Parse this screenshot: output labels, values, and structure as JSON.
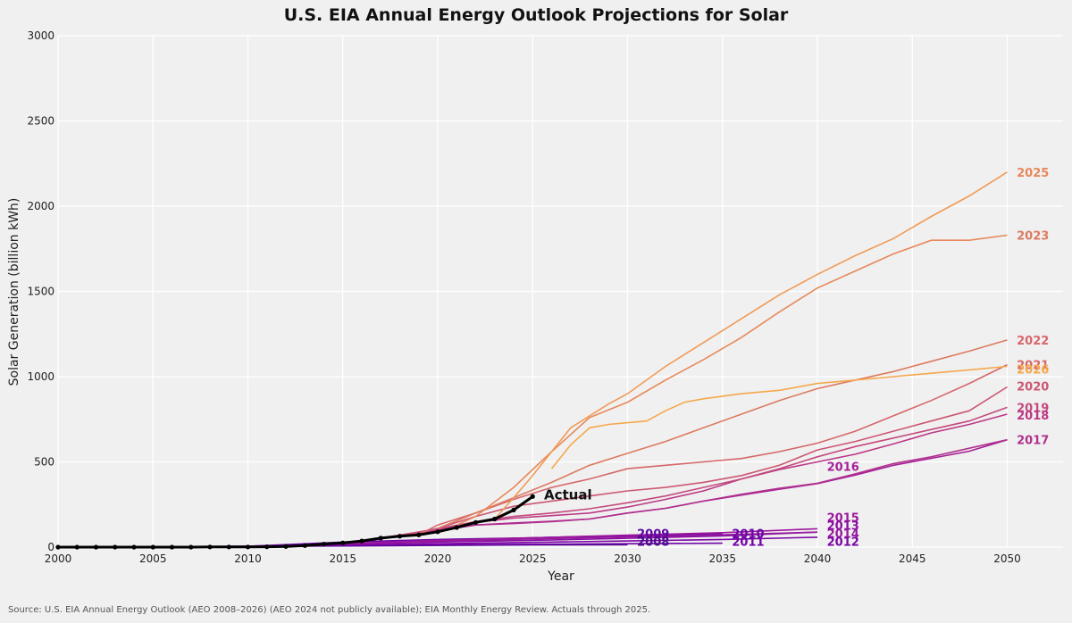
{
  "chart_data": {
    "type": "line",
    "title": "U.S. EIA Annual Energy Outlook Projections for Solar",
    "xlabel": "Year",
    "ylabel": "Solar Generation (billion kWh)",
    "xlim": [
      2000,
      2053
    ],
    "ylim": [
      0,
      3000
    ],
    "x_ticks": [
      2000,
      2005,
      2010,
      2015,
      2020,
      2025,
      2030,
      2035,
      2040,
      2045,
      2050
    ],
    "y_ticks": [
      0,
      500,
      1000,
      1500,
      2000,
      2500,
      3000
    ],
    "grid": true,
    "source": "Source: U.S. EIA Annual Energy Outlook (AEO 2008–2026) (AEO 2024 not publicly available); EIA Monthly Energy Review. Actuals through 2025.",
    "actual": {
      "name": "Actual",
      "color": "#000000",
      "points": [
        [
          2000,
          0
        ],
        [
          2001,
          0
        ],
        [
          2002,
          0
        ],
        [
          2003,
          0
        ],
        [
          2004,
          0
        ],
        [
          2005,
          0
        ],
        [
          2006,
          0
        ],
        [
          2007,
          0
        ],
        [
          2008,
          1
        ],
        [
          2009,
          1
        ],
        [
          2010,
          1
        ],
        [
          2011,
          2
        ],
        [
          2012,
          4
        ],
        [
          2013,
          9
        ],
        [
          2014,
          18
        ],
        [
          2015,
          25
        ],
        [
          2016,
          36
        ],
        [
          2017,
          53
        ],
        [
          2018,
          64
        ],
        [
          2019,
          72
        ],
        [
          2020,
          90
        ],
        [
          2021,
          115
        ],
        [
          2022,
          145
        ],
        [
          2023,
          165
        ],
        [
          2024,
          218
        ],
        [
          2025,
          297
        ]
      ]
    },
    "series": [
      {
        "name": "2008",
        "color": "#4a0c8c",
        "points": [
          [
            2006,
            2
          ],
          [
            2010,
            4
          ],
          [
            2015,
            7
          ],
          [
            2020,
            10
          ],
          [
            2025,
            13
          ],
          [
            2030,
            14
          ]
        ]
      },
      {
        "name": "2009",
        "color": "#5b08a0",
        "points": [
          [
            2007,
            2
          ],
          [
            2010,
            6
          ],
          [
            2015,
            20
          ],
          [
            2020,
            38
          ],
          [
            2025,
            55
          ],
          [
            2030,
            68
          ]
        ]
      },
      {
        "name": "2010",
        "color": "#6a06a6",
        "points": [
          [
            2008,
            2
          ],
          [
            2010,
            5
          ],
          [
            2015,
            30
          ],
          [
            2020,
            45
          ],
          [
            2025,
            55
          ],
          [
            2030,
            66
          ],
          [
            2035,
            80
          ]
        ]
      },
      {
        "name": "2011",
        "color": "#7103a8",
        "points": [
          [
            2009,
            2
          ],
          [
            2010,
            3
          ],
          [
            2015,
            10
          ],
          [
            2020,
            14
          ],
          [
            2025,
            17
          ],
          [
            2030,
            20
          ],
          [
            2035,
            23
          ]
        ]
      },
      {
        "name": "2012",
        "color": "#7c06a5",
        "points": [
          [
            2010,
            3
          ],
          [
            2012,
            5
          ],
          [
            2015,
            12
          ],
          [
            2020,
            20
          ],
          [
            2025,
            28
          ],
          [
            2030,
            36
          ],
          [
            2035,
            45
          ],
          [
            2040,
            58
          ]
        ]
      },
      {
        "name": "2013",
        "color": "#8a0da3",
        "points": [
          [
            2011,
            4
          ],
          [
            2015,
            18
          ],
          [
            2020,
            30
          ],
          [
            2025,
            40
          ],
          [
            2030,
            52
          ],
          [
            2035,
            66
          ],
          [
            2040,
            88
          ]
        ]
      },
      {
        "name": "2014",
        "color": "#961a9d",
        "points": [
          [
            2012,
            4
          ],
          [
            2015,
            20
          ],
          [
            2020,
            35
          ],
          [
            2025,
            48
          ],
          [
            2030,
            60
          ],
          [
            2035,
            72
          ],
          [
            2040,
            88
          ]
        ]
      },
      {
        "name": "2015",
        "color": "#9c179e",
        "points": [
          [
            2013,
            9
          ],
          [
            2015,
            20
          ],
          [
            2020,
            40
          ],
          [
            2025,
            55
          ],
          [
            2030,
            70
          ],
          [
            2035,
            85
          ],
          [
            2040,
            108
          ]
        ]
      },
      {
        "name": "2016",
        "color": "#a62098",
        "points": [
          [
            2014,
            18
          ],
          [
            2016,
            36
          ],
          [
            2018,
            62
          ],
          [
            2020,
            95
          ],
          [
            2022,
            130
          ],
          [
            2024,
            142
          ],
          [
            2026,
            152
          ],
          [
            2028,
            165
          ],
          [
            2030,
            200
          ],
          [
            2032,
            228
          ],
          [
            2034,
            270
          ],
          [
            2036,
            305
          ],
          [
            2038,
            340
          ],
          [
            2040,
            372
          ],
          [
            2042,
            423
          ],
          [
            2044,
            480
          ],
          [
            2046,
            521
          ],
          [
            2048,
            563
          ],
          [
            2050,
            630
          ]
        ]
      },
      {
        "name": "2017",
        "color": "#b0318c",
        "points": [
          [
            2015,
            25
          ],
          [
            2016,
            36
          ],
          [
            2018,
            68
          ],
          [
            2020,
            100
          ],
          [
            2022,
            130
          ],
          [
            2024,
            138
          ],
          [
            2026,
            150
          ],
          [
            2028,
            165
          ],
          [
            2030,
            200
          ],
          [
            2032,
            228
          ],
          [
            2034,
            270
          ],
          [
            2036,
            310
          ],
          [
            2038,
            345
          ],
          [
            2040,
            375
          ],
          [
            2042,
            430
          ],
          [
            2044,
            490
          ],
          [
            2046,
            530
          ],
          [
            2048,
            580
          ],
          [
            2050,
            630
          ]
        ]
      },
      {
        "name": "2018",
        "color": "#bc3786",
        "points": [
          [
            2016,
            36
          ],
          [
            2018,
            70
          ],
          [
            2020,
            105
          ],
          [
            2022,
            145
          ],
          [
            2024,
            170
          ],
          [
            2026,
            185
          ],
          [
            2028,
            200
          ],
          [
            2030,
            235
          ],
          [
            2032,
            280
          ],
          [
            2034,
            330
          ],
          [
            2036,
            400
          ],
          [
            2038,
            455
          ],
          [
            2040,
            500
          ],
          [
            2042,
            545
          ],
          [
            2044,
            605
          ],
          [
            2046,
            670
          ],
          [
            2048,
            720
          ],
          [
            2050,
            780
          ]
        ]
      },
      {
        "name": "2019",
        "color": "#c44a7d",
        "points": [
          [
            2017,
            53
          ],
          [
            2018,
            70
          ],
          [
            2020,
            108
          ],
          [
            2022,
            150
          ],
          [
            2024,
            180
          ],
          [
            2026,
            200
          ],
          [
            2028,
            225
          ],
          [
            2030,
            260
          ],
          [
            2032,
            300
          ],
          [
            2034,
            350
          ],
          [
            2036,
            400
          ],
          [
            2038,
            460
          ],
          [
            2040,
            530
          ],
          [
            2042,
            590
          ],
          [
            2044,
            640
          ],
          [
            2046,
            690
          ],
          [
            2048,
            740
          ],
          [
            2050,
            820
          ]
        ]
      },
      {
        "name": "2020",
        "color": "#cc5772",
        "points": [
          [
            2018,
            64
          ],
          [
            2020,
            110
          ],
          [
            2022,
            180
          ],
          [
            2024,
            240
          ],
          [
            2026,
            270
          ],
          [
            2028,
            300
          ],
          [
            2030,
            330
          ],
          [
            2032,
            350
          ],
          [
            2034,
            380
          ],
          [
            2036,
            420
          ],
          [
            2038,
            480
          ],
          [
            2040,
            570
          ],
          [
            2042,
            620
          ],
          [
            2044,
            680
          ],
          [
            2046,
            740
          ],
          [
            2048,
            800
          ],
          [
            2050,
            940
          ]
        ]
      },
      {
        "name": "2021",
        "color": "#d6676a",
        "points": [
          [
            2019,
            72
          ],
          [
            2020,
            130
          ],
          [
            2022,
            200
          ],
          [
            2024,
            280
          ],
          [
            2026,
            350
          ],
          [
            2028,
            400
          ],
          [
            2030,
            460
          ],
          [
            2032,
            480
          ],
          [
            2034,
            500
          ],
          [
            2036,
            520
          ],
          [
            2038,
            560
          ],
          [
            2040,
            610
          ],
          [
            2042,
            680
          ],
          [
            2044,
            770
          ],
          [
            2046,
            860
          ],
          [
            2048,
            960
          ],
          [
            2050,
            1070
          ]
        ]
      },
      {
        "name": "2022",
        "color": "#dd7a60",
        "points": [
          [
            2020,
            110
          ],
          [
            2022,
            200
          ],
          [
            2024,
            290
          ],
          [
            2026,
            380
          ],
          [
            2028,
            480
          ],
          [
            2030,
            550
          ],
          [
            2032,
            620
          ],
          [
            2034,
            700
          ],
          [
            2036,
            780
          ],
          [
            2038,
            860
          ],
          [
            2040,
            930
          ],
          [
            2042,
            980
          ],
          [
            2044,
            1030
          ],
          [
            2046,
            1090
          ],
          [
            2048,
            1150
          ],
          [
            2050,
            1215
          ]
        ]
      },
      {
        "name": "2023",
        "color": "#e8885a",
        "points": [
          [
            2021,
            130
          ],
          [
            2022,
            180
          ],
          [
            2024,
            350
          ],
          [
            2026,
            560
          ],
          [
            2027,
            660
          ],
          [
            2028,
            760
          ],
          [
            2030,
            850
          ],
          [
            2032,
            980
          ],
          [
            2034,
            1100
          ],
          [
            2036,
            1230
          ],
          [
            2038,
            1380
          ],
          [
            2040,
            1520
          ],
          [
            2042,
            1620
          ],
          [
            2044,
            1720
          ],
          [
            2046,
            1800
          ],
          [
            2048,
            1800
          ],
          [
            2050,
            1830
          ]
        ]
      },
      {
        "name": "2025",
        "color": "#f19a55",
        "points": [
          [
            2023,
            165
          ],
          [
            2024,
            290
          ],
          [
            2025,
            420
          ],
          [
            2026,
            560
          ],
          [
            2027,
            700
          ],
          [
            2028,
            770
          ],
          [
            2029,
            840
          ],
          [
            2030,
            900
          ],
          [
            2032,
            1060
          ],
          [
            2034,
            1200
          ],
          [
            2036,
            1340
          ],
          [
            2038,
            1480
          ],
          [
            2040,
            1600
          ],
          [
            2042,
            1710
          ],
          [
            2044,
            1810
          ],
          [
            2046,
            1940
          ],
          [
            2048,
            2060
          ],
          [
            2050,
            2200
          ]
        ]
      },
      {
        "name": "2026",
        "color": "#f5a84c",
        "points": [
          [
            2026,
            460
          ],
          [
            2027,
            600
          ],
          [
            2028,
            700
          ],
          [
            2029,
            720
          ],
          [
            2030,
            730
          ],
          [
            2031,
            740
          ],
          [
            2032,
            800
          ],
          [
            2033,
            850
          ],
          [
            2034,
            870
          ],
          [
            2036,
            900
          ],
          [
            2038,
            920
          ],
          [
            2040,
            960
          ],
          [
            2042,
            980
          ],
          [
            2044,
            1000
          ],
          [
            2046,
            1020
          ],
          [
            2048,
            1040
          ],
          [
            2050,
            1060
          ]
        ]
      }
    ],
    "labels": [
      {
        "text": "2025",
        "color": "#e8885a",
        "x": 2050.5,
        "y": 2200
      },
      {
        "text": "2023",
        "color": "#dd7a60",
        "x": 2050.5,
        "y": 1830
      },
      {
        "text": "2022",
        "color": "#d6676a",
        "x": 2050.5,
        "y": 1215
      },
      {
        "text": "2021",
        "color": "#d6676a",
        "x": 2050.5,
        "y": 1070
      },
      {
        "text": "2026",
        "color": "#f5a84c",
        "x": 2050.5,
        "y": 1045
      },
      {
        "text": "2020",
        "color": "#cc5772",
        "x": 2050.5,
        "y": 945
      },
      {
        "text": "2019",
        "color": "#c44a7d",
        "x": 2050.5,
        "y": 820
      },
      {
        "text": "2018",
        "color": "#bc3786",
        "x": 2050.5,
        "y": 775
      },
      {
        "text": "2017",
        "color": "#b0318c",
        "x": 2050.5,
        "y": 630
      },
      {
        "text": "2016",
        "color": "#a62098",
        "x": 2040.5,
        "y": 475
      },
      {
        "text": "2015",
        "color": "#9c179e",
        "x": 2040.5,
        "y": 175
      },
      {
        "text": "2013",
        "color": "#8a0da3",
        "x": 2040.5,
        "y": 128
      },
      {
        "text": "2014",
        "color": "#961a9d",
        "x": 2040.5,
        "y": 80
      },
      {
        "text": "2012",
        "color": "#7c06a5",
        "x": 2040.5,
        "y": 35
      },
      {
        "text": "2010",
        "color": "#6a06a6",
        "x": 2035.5,
        "y": 80
      },
      {
        "text": "2011",
        "color": "#7103a8",
        "x": 2035.5,
        "y": 35
      },
      {
        "text": "2009",
        "color": "#5b08a0",
        "x": 2030.5,
        "y": 80
      },
      {
        "text": "2008",
        "color": "#4a0c8c",
        "x": 2030.5,
        "y": 35
      }
    ],
    "actual_label": {
      "text": "Actual",
      "x": 2025.6,
      "y": 300
    }
  }
}
